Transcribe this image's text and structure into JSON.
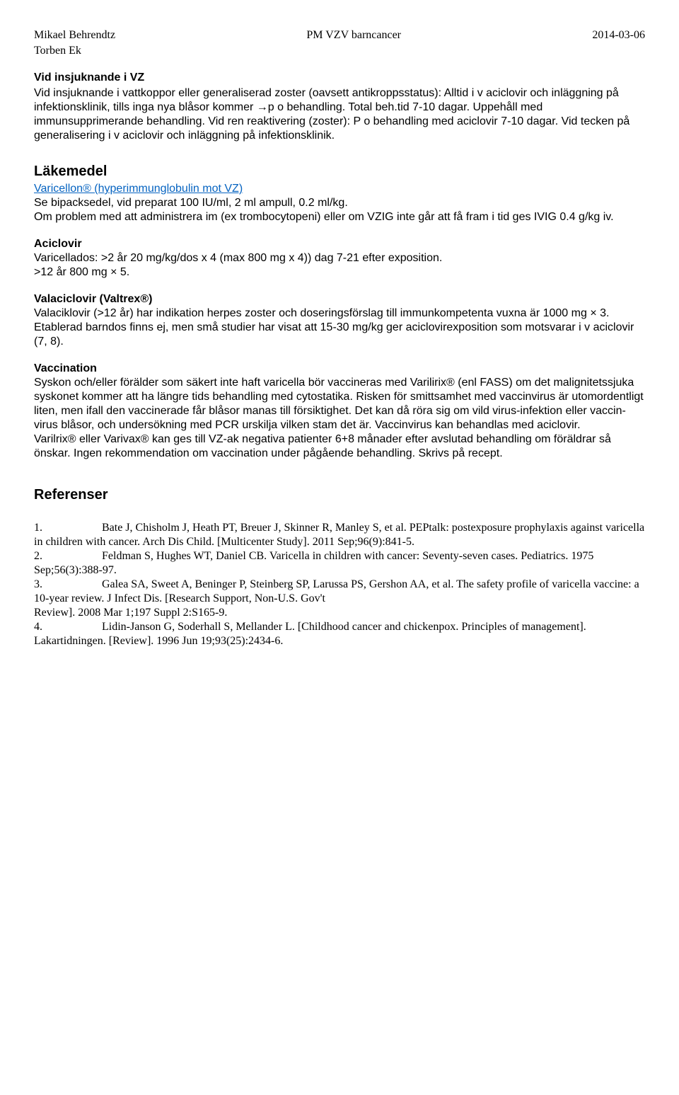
{
  "header": {
    "author1": "Mikael Behrendtz",
    "title": "PM VZV barncancer",
    "date": "2014-03-06",
    "author2": "Torben Ek"
  },
  "s1": {
    "heading": "Vid insjuknande i VZ",
    "body": "Vid insjuknande i vattkoppor eller generaliserad zoster (oavsett antikroppsstatus): Alltid i v aciclovir och inläggning på infektionsklinik, tills inga nya blåsor kommer →p o behandling. Total beh.tid 7-10 dagar. Uppehåll med immunsupprimerande behandling. Vid ren reaktivering (zoster): P o behandling med aciclovir 7-10 dagar. Vid tecken på generalisering i v aciclovir och inläggning på infektionsklinik."
  },
  "s2": {
    "heading": "Läkemedel",
    "sub_link": "Varicellon® (hyperimmunglobulin mot VZ)",
    "body1": "Se bipacksedel, vid preparat 100 IU/ml, 2 ml ampull, 0.2 ml/kg.",
    "body2": "Om problem med att administrera im (ex trombocytopeni) eller om VZIG inte går att få fram i tid ges IVIG 0.4 g/kg iv."
  },
  "s3": {
    "heading": "Aciclovir",
    "body1": "Varicellados: >2 år 20 mg/kg/dos x 4 (max 800 mg x 4)) dag 7-21 efter exposition.",
    "body2": ">12 år 800 mg × 5."
  },
  "s4": {
    "heading": "Valaciclovir (Valtrex®)",
    "body": "Valaciklovir (>12 år) har indikation herpes zoster och doseringsförslag till immunkompetenta vuxna är 1000 mg × 3. Etablerad barndos finns ej, men små studier har visat att 15-30 mg/kg ger aciclovirexposition som motsvarar i v aciclovir (7, 8)."
  },
  "s5": {
    "heading": "Vaccination",
    "body1": "Syskon och/eller förälder som säkert inte haft varicella bör vaccineras med Varilirix® (enl FASS) om det malignitetssjuka syskonet kommer att ha längre tids behandling med cytostatika. Risken för smittsamhet med vaccinvirus är utomordentligt liten, men ifall den vaccinerade får blåsor manas till försiktighet. Det kan då röra sig om vild virus-infektion eller vaccin-virus blåsor, och undersökning med PCR urskilja vilken stam det är. Vaccinvirus kan behandlas med aciclovir.",
    "body2": "Varilrix® eller Varivax® kan ges till VZ-ak negativa patienter 6+8 månader efter avslutad behandling om föräldrar så önskar. Ingen rekommendation om vaccination under pågående behandling. Skrivs på recept."
  },
  "refs": {
    "heading": "Referenser",
    "items": [
      {
        "n": "1.",
        "t": "Bate J, Chisholm J, Heath PT, Breuer J, Skinner R, Manley S, et al. PEPtalk: postexposure prophylaxis against varicella in children with cancer. Arch Dis Child. [Multicenter Study]. 2011 Sep;96(9):841-5."
      },
      {
        "n": "2.",
        "t": "Feldman S, Hughes WT, Daniel CB. Varicella in children with cancer: Seventy-seven cases. Pediatrics. 1975 Sep;56(3):388-97."
      },
      {
        "n": "3.",
        "t": "Galea SA, Sweet A, Beninger P, Steinberg SP, Larussa PS, Gershon AA, et al. The safety profile of varicella vaccine: a 10-year review. J Infect Dis. [Research Support, Non-U.S. Gov't"
      },
      {
        "n": "",
        "t": "Review]. 2008 Mar 1;197 Suppl 2:S165-9."
      },
      {
        "n": "4.",
        "t": "Lidin-Janson G, Soderhall S, Mellander L. [Childhood cancer and chickenpox. Principles of management]. Lakartidningen. [Review]. 1996 Jun 19;93(25):2434-6."
      }
    ]
  }
}
